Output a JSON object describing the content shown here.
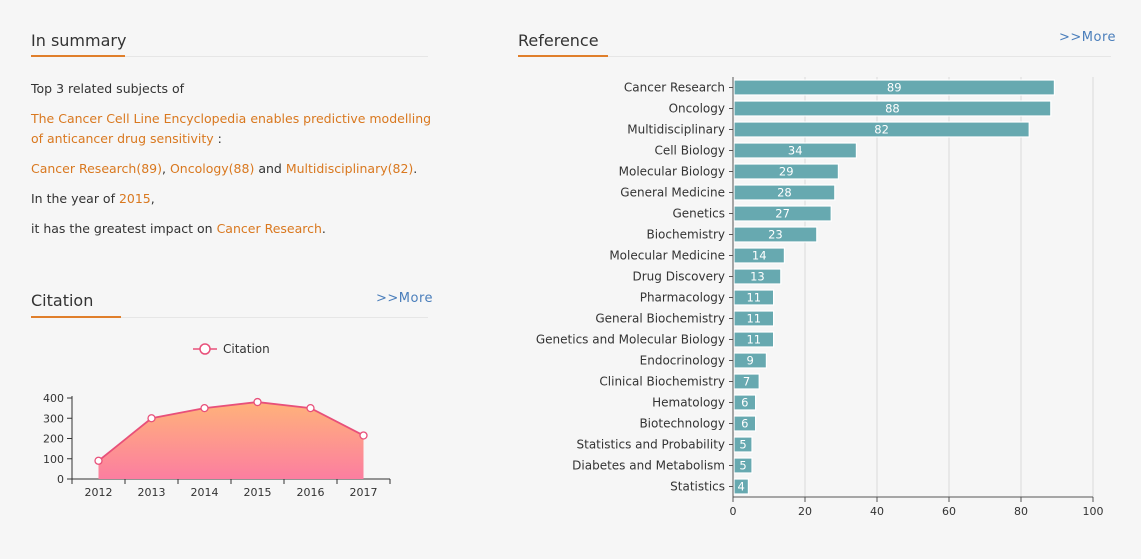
{
  "summary": {
    "title": "In summary",
    "intro": "Top 3 related subjects of",
    "paper_title_1": "The Cancer Cell Line Encyclopedia enables predictive modelling",
    "paper_title_2": "of anticancer drug sensitivity",
    "colon": " :",
    "subject1": "Cancer Research(89)",
    "sep1": ", ",
    "subject2": "Oncology(88)",
    "sep2": " and ",
    "subject3": "Multidisciplinary(82)",
    "dot1": ".",
    "year_prefix": "In the year of ",
    "year": "2015",
    "comma": ",",
    "impact_prefix": "it has the greatest impact on ",
    "impact_subject": "Cancer Research",
    "dot2": "."
  },
  "citation": {
    "title": "Citation",
    "more": ">>More"
  },
  "reference": {
    "title": "Reference",
    "more": ">>More"
  },
  "colors": {
    "accent": "#e07f2b",
    "link": "#4a7ebb",
    "bar": "#67a9b0",
    "line": "#e8507a"
  },
  "chart_data": [
    {
      "type": "area",
      "series": [
        {
          "name": "Citation",
          "values": [
            90,
            300,
            350,
            380,
            350,
            215
          ]
        }
      ],
      "categories": [
        "2012",
        "2013",
        "2014",
        "2015",
        "2016",
        "2017"
      ],
      "ylim": [
        0,
        400
      ],
      "yticks": [
        0,
        100,
        200,
        300,
        400
      ],
      "legend": "top-center",
      "grid": false
    },
    {
      "type": "bar",
      "orientation": "horizontal",
      "categories": [
        "Cancer Research",
        "Oncology",
        "Multidisciplinary",
        "Cell Biology",
        "Molecular Biology",
        "General Medicine",
        "Genetics",
        "Biochemistry",
        "Molecular Medicine",
        "Drug Discovery",
        "Pharmacology",
        "General Biochemistry",
        "Genetics and Molecular Biology",
        "Endocrinology",
        "Clinical Biochemistry",
        "Hematology",
        "Biotechnology",
        "Statistics and Probability",
        "Diabetes and Metabolism",
        "Statistics"
      ],
      "values": [
        89,
        88,
        82,
        34,
        29,
        28,
        27,
        23,
        14,
        13,
        11,
        11,
        11,
        9,
        7,
        6,
        6,
        5,
        5,
        4
      ],
      "xlim": [
        0,
        100
      ],
      "xticks": [
        0,
        20,
        40,
        60,
        80,
        100
      ],
      "grid": true
    }
  ]
}
